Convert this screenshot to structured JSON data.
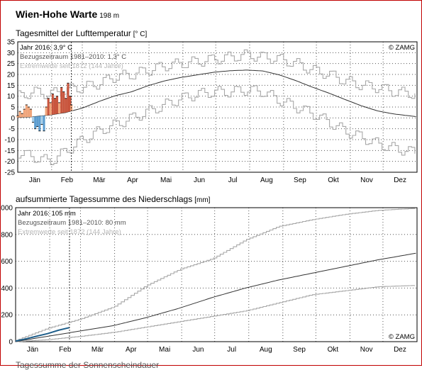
{
  "station": {
    "name": "Wien-Hohe Warte",
    "elevation": "198 m"
  },
  "accent_colors": {
    "warm": "#c8553d",
    "warm_light": "#f0a57a",
    "cold": "#5b9ccf",
    "cold_light": "#a9cfe8",
    "precip": "#1f5f8b",
    "border": "#c00000"
  },
  "chart_data": [
    {
      "type": "line",
      "title": "Tagesmittel der Lufttemperatur",
      "unit": "[° C]",
      "ylim": [
        -25,
        35
      ],
      "yticks": [
        "35",
        "30",
        "25",
        "20",
        "15",
        "10",
        "5",
        "0",
        "-5",
        "-10",
        "-15",
        "-20",
        "-25"
      ],
      "months": [
        "Jän",
        "Feb",
        "Mär",
        "Apr",
        "Mai",
        "Jun",
        "Jul",
        "Aug",
        "Sep",
        "Okt",
        "Nov",
        "Dez"
      ],
      "grid": true,
      "legend": [
        {
          "label": "Jahr 2016: 3,9° C"
        },
        {
          "label": "Bezugszeitraum 1981–2010: 1,3° C"
        },
        {
          "label": "Extremwerte seit 1872 (144 Jahre)"
        }
      ],
      "credit": "© ZAMG",
      "current_day": 50,
      "series": [
        {
          "name": "Jahr 2016",
          "x": [
            1,
            3,
            5,
            7,
            9,
            11,
            13,
            15,
            17,
            19,
            21,
            23,
            25,
            27,
            29,
            31,
            33,
            35,
            37,
            39,
            41,
            43,
            45,
            47,
            49,
            50
          ],
          "values": [
            1,
            3,
            2,
            4,
            6,
            5,
            4,
            -2,
            -5,
            -4,
            -6,
            -3,
            -6,
            5,
            9,
            7,
            11,
            9,
            10,
            7,
            14,
            12,
            9,
            16,
            10,
            6
          ]
        },
        {
          "name": "Bezugszeitraum 1981–2010",
          "x": [
            1,
            15,
            30,
            45,
            60,
            75,
            90,
            105,
            120,
            135,
            150,
            165,
            180,
            195,
            210,
            225,
            240,
            255,
            270,
            285,
            300,
            315,
            330,
            345,
            365
          ],
          "values": [
            0.2,
            0.5,
            1.3,
            2.5,
            4.5,
            7.5,
            10.2,
            12.0,
            14.8,
            17.0,
            18.6,
            19.8,
            21.0,
            21.7,
            22.0,
            21.6,
            19.8,
            17.2,
            14.2,
            11.5,
            8.5,
            5.6,
            3.2,
            1.8,
            0.6
          ]
        },
        {
          "name": "Maximum",
          "x": [
            1,
            15,
            30,
            45,
            60,
            75,
            90,
            105,
            120,
            135,
            150,
            165,
            180,
            195,
            210,
            225,
            240,
            255,
            270,
            285,
            300,
            315,
            330,
            345,
            365
          ],
          "values": [
            10,
            12,
            11,
            13,
            14,
            16,
            19,
            20,
            22,
            24,
            25,
            26,
            27,
            28,
            29,
            28,
            27,
            25,
            22,
            20,
            17,
            15,
            14,
            12,
            11
          ]
        },
        {
          "name": "Minimum",
          "x": [
            1,
            15,
            30,
            45,
            60,
            75,
            90,
            105,
            120,
            135,
            150,
            165,
            180,
            195,
            210,
            225,
            240,
            255,
            270,
            285,
            300,
            315,
            330,
            345,
            365
          ],
          "values": [
            -16,
            -18,
            -20,
            -15,
            -10,
            -6,
            -3,
            0,
            3,
            6,
            9,
            11,
            12,
            12,
            13,
            12,
            8,
            5,
            2,
            -2,
            -6,
            -9,
            -12,
            -14,
            -16
          ]
        }
      ]
    },
    {
      "type": "line",
      "title": "aufsummierte Tagessumme des Niederschlags",
      "unit": "[mm]",
      "ylim": [
        0,
        1000
      ],
      "yticks": [
        "1000",
        "800",
        "600",
        "400",
        "200",
        "0"
      ],
      "months": [
        "Jän",
        "Feb",
        "Mär",
        "Apr",
        "Mai",
        "Jun",
        "Jul",
        "Aug",
        "Sep",
        "Okt",
        "Nov",
        "Dez"
      ],
      "grid": true,
      "legend": [
        {
          "label": "Jahr 2016: 105 mm"
        },
        {
          "label": "Bezugszeitraum 1981–2010: 80 mm"
        },
        {
          "label": "Extremwerte seit 1872 (144 Jahre)"
        }
      ],
      "credit": "© ZAMG",
      "current_day": 50,
      "series": [
        {
          "name": "Jahr 2016",
          "x": [
            1,
            10,
            20,
            30,
            40,
            50
          ],
          "values": [
            5,
            20,
            40,
            60,
            85,
            105
          ]
        },
        {
          "name": "Bezugszeitraum 1981–2010",
          "x": [
            1,
            30,
            60,
            90,
            120,
            150,
            180,
            210,
            240,
            270,
            300,
            330,
            365
          ],
          "values": [
            0,
            40,
            80,
            120,
            180,
            250,
            330,
            400,
            460,
            510,
            560,
            610,
            660
          ]
        },
        {
          "name": "Maximum",
          "x": [
            1,
            30,
            60,
            90,
            120,
            150,
            180,
            210,
            240,
            270,
            300,
            330,
            365
          ],
          "values": [
            10,
            100,
            170,
            260,
            420,
            540,
            620,
            760,
            860,
            910,
            950,
            980,
            995
          ]
        },
        {
          "name": "Minimum",
          "x": [
            1,
            30,
            60,
            90,
            120,
            150,
            180,
            210,
            240,
            270,
            300,
            330,
            365
          ],
          "values": [
            0,
            15,
            40,
            70,
            110,
            150,
            190,
            230,
            290,
            350,
            380,
            410,
            420
          ]
        }
      ]
    }
  ],
  "next_panel_title": "Tagessumme der Sonnenscheindauer"
}
